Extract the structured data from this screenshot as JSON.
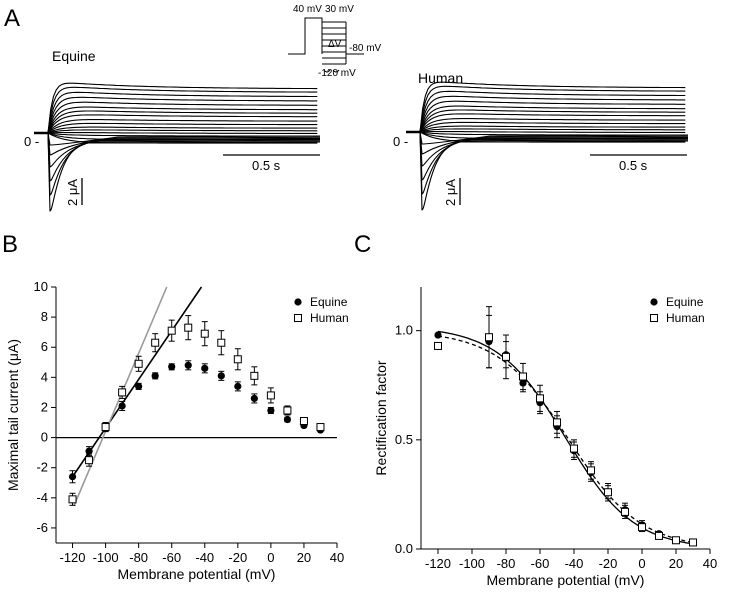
{
  "panel_a": {
    "letter": "A",
    "left_title": "Equine",
    "right_title": "Human",
    "zero_label": "0 -",
    "time_scale": "0.5 s",
    "current_scale": "2 μA",
    "protocol": {
      "top_voltage": "40 mV",
      "step_top": "30 mV",
      "step_symbol": "ΔV",
      "holding": "-80 mV",
      "step_bottom": "-120 mV"
    }
  },
  "chart_data": [
    {
      "panel": "B",
      "type": "scatter",
      "xlabel": "Membrane potential (mV)",
      "ylabel": "Maximal tail current (μA)",
      "xlim": [
        -130,
        40
      ],
      "ylim": [
        -7,
        10
      ],
      "xticks": [
        -120,
        -100,
        -80,
        -60,
        -40,
        -20,
        0,
        20,
        40
      ],
      "yticks": [
        -6,
        -4,
        -2,
        0,
        2,
        4,
        6,
        8,
        10
      ],
      "legend_position": "top-right",
      "series": [
        {
          "name": "Equine",
          "marker": "filled-circle",
          "x": [
            -120,
            -110,
            -100,
            -90,
            -80,
            -70,
            -60,
            -50,
            -40,
            -30,
            -20,
            -10,
            0,
            10,
            20,
            30
          ],
          "y": [
            -2.6,
            -0.9,
            0.7,
            2.1,
            3.4,
            4.1,
            4.7,
            4.8,
            4.6,
            4.1,
            3.4,
            2.6,
            1.8,
            1.2,
            0.8,
            0.5
          ],
          "err": [
            0.4,
            0.3,
            0.3,
            0.3,
            0.2,
            0.2,
            0.2,
            0.3,
            0.3,
            0.3,
            0.3,
            0.3,
            0.2,
            0.15,
            0.1,
            0.1
          ]
        },
        {
          "name": "Human",
          "marker": "open-square",
          "x": [
            -120,
            -110,
            -100,
            -90,
            -80,
            -70,
            -60,
            -50,
            -40,
            -30,
            -20,
            -10,
            0,
            10,
            20,
            30
          ],
          "y": [
            -4.1,
            -1.5,
            0.7,
            3.0,
            4.9,
            6.3,
            7.1,
            7.3,
            6.9,
            6.3,
            5.2,
            4.1,
            2.8,
            1.8,
            1.1,
            0.7
          ],
          "err": [
            0.4,
            0.4,
            0.3,
            0.4,
            0.5,
            0.6,
            0.7,
            0.8,
            0.8,
            0.8,
            0.7,
            0.6,
            0.5,
            0.3,
            0.2,
            0.15
          ]
        }
      ],
      "fit_lines": [
        {
          "for": "Equine",
          "color": "#000000",
          "x": [
            -120,
            -42
          ],
          "y": [
            -2.6,
            10
          ]
        },
        {
          "for": "Human",
          "color": "#9a9a9a",
          "x": [
            -119,
            -63
          ],
          "y": [
            -4.5,
            10
          ]
        }
      ]
    },
    {
      "panel": "C",
      "type": "scatter",
      "xlabel": "Membrane potential (mV)",
      "ylabel": "Rectification factor",
      "xlim": [
        -130,
        40
      ],
      "ylim": [
        0,
        1.2
      ],
      "xticks": [
        -120,
        -100,
        -80,
        -60,
        -40,
        -20,
        0,
        20,
        40
      ],
      "yticks": [
        0.0,
        0.5,
        1.0
      ],
      "ytick_labels": [
        "0.0",
        "0.5",
        "1.0"
      ],
      "legend_position": "top-right",
      "series": [
        {
          "name": "Equine",
          "marker": "filled-circle",
          "x": [
            -120,
            -90,
            -80,
            -70,
            -60,
            -50,
            -40,
            -30,
            -20,
            -10,
            0,
            10,
            20,
            30
          ],
          "y": [
            0.98,
            0.95,
            0.89,
            0.76,
            0.67,
            0.56,
            0.45,
            0.35,
            0.26,
            0.18,
            0.11,
            0.07,
            0.04,
            0.03
          ],
          "err": [
            0.0,
            0.12,
            0.06,
            0.04,
            0.05,
            0.05,
            0.04,
            0.04,
            0.03,
            0.03,
            0.02,
            0.01,
            0.01,
            0.01
          ]
        },
        {
          "name": "Human",
          "marker": "open-square",
          "x": [
            -120,
            -90,
            -80,
            -70,
            -60,
            -50,
            -40,
            -30,
            -20,
            -10,
            0,
            10,
            20,
            30
          ],
          "y": [
            0.93,
            0.97,
            0.88,
            0.79,
            0.69,
            0.58,
            0.46,
            0.36,
            0.26,
            0.17,
            0.1,
            0.06,
            0.04,
            0.03
          ],
          "err": [
            0.0,
            0.14,
            0.1,
            0.06,
            0.06,
            0.05,
            0.04,
            0.04,
            0.04,
            0.03,
            0.02,
            0.01,
            0.01,
            0.01
          ]
        }
      ],
      "fit_curves": [
        {
          "for": "Equine",
          "style": "solid",
          "top": 1.02,
          "v_half": -45,
          "slope": 20
        },
        {
          "for": "Human",
          "style": "dashed",
          "top": 1.0,
          "v_half": -43,
          "slope": 21
        }
      ]
    }
  ]
}
